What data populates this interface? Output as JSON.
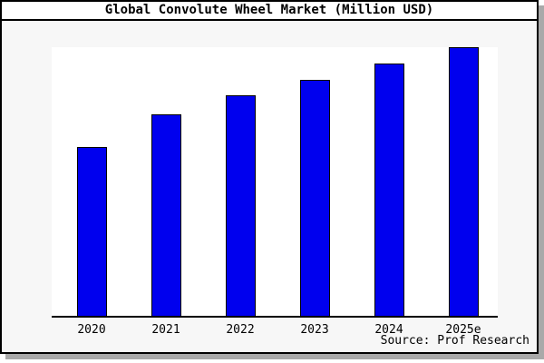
{
  "title": "Global Convolute Wheel Market (Million USD)",
  "source_caption": "Source: Prof Research",
  "colors": {
    "bar_fill": "#0000ee",
    "bar_border": "#000000",
    "card_background": "#f7f7f7",
    "plot_background": "#ffffff",
    "title_background": "#ffffff",
    "border": "#000000",
    "shadow": "#a9a9a9",
    "text": "#000000"
  },
  "chart_data": {
    "type": "bar",
    "title": "Global Convolute Wheel Market (Million USD)",
    "categories": [
      "2020",
      "2021",
      "2022",
      "2023",
      "2024",
      "2025e"
    ],
    "values": [
      63,
      75,
      82,
      88,
      94,
      100
    ],
    "value_note": "No y-axis ticks or value labels are visible; values are relative bar heights with the tallest bar (2025e) = 100.",
    "xlabel": "",
    "ylabel": "",
    "ylim": [
      0,
      100
    ],
    "grid": false,
    "legend": false,
    "source": "Source: Prof Research"
  }
}
